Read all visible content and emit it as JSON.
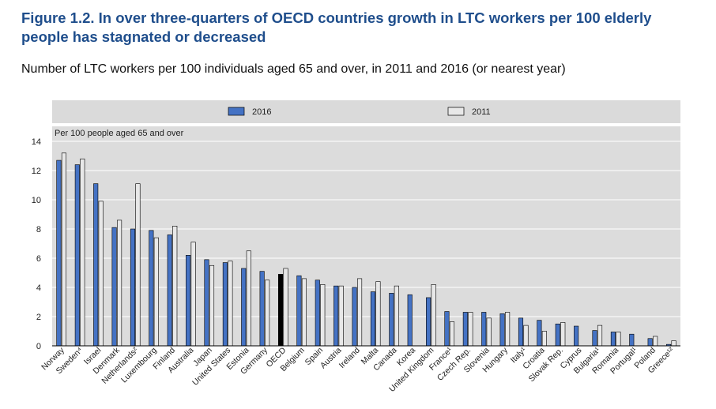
{
  "figure": {
    "title": "Figure 1.2. In over three-quarters of OECD countries growth in LTC workers per 100 elderly people has stagnated or decreased",
    "subtitle": "Number of LTC workers per 100 individuals aged 65 and over, in 2011 and 2016 (or nearest year)"
  },
  "chart_data": {
    "type": "bar",
    "ylabel": "Per 100 people aged 65 and over",
    "ylim": [
      0,
      14
    ],
    "yticks": [
      0,
      2,
      4,
      6,
      8,
      10,
      12,
      14
    ],
    "grid": true,
    "legend_position": "top",
    "categories": [
      "Norway",
      "Sweden⁴",
      "Israel",
      "Denmark",
      "Netherlands²",
      "Luxembourg",
      "Finland",
      "Australia",
      "Japan",
      "United States",
      "Estonia",
      "Germany",
      "OECD",
      "Belgium",
      "Spain",
      "Austria",
      "Ireland",
      "Malta",
      "Canada",
      "Korea",
      "United Kingdom",
      "France¹",
      "Czech Rep.",
      "Slovenia",
      "Hungary",
      "Italy¹",
      "Croatia",
      "Slovak Rep.",
      "Cyprus",
      "Bulgaria¹",
      "Romania",
      "Portugal¹",
      "Poland",
      "Greece¹²"
    ],
    "series": [
      {
        "name": "2016",
        "color": "#4472c4",
        "values": [
          12.7,
          12.4,
          11.1,
          8.1,
          8.0,
          7.9,
          7.6,
          6.2,
          5.9,
          5.7,
          5.3,
          5.1,
          4.9,
          4.8,
          4.5,
          4.1,
          4.0,
          3.7,
          3.6,
          3.5,
          3.3,
          2.35,
          2.3,
          2.3,
          2.2,
          1.9,
          1.75,
          1.5,
          1.35,
          1.05,
          0.95,
          0.8,
          0.5,
          0.1
        ]
      },
      {
        "name": "2011",
        "color": "#e8e8e8",
        "values": [
          13.2,
          12.8,
          9.9,
          8.6,
          11.1,
          7.4,
          8.2,
          7.1,
          5.5,
          5.8,
          6.5,
          4.5,
          5.3,
          4.6,
          4.2,
          4.1,
          4.6,
          4.4,
          4.1,
          null,
          4.2,
          1.65,
          2.3,
          1.9,
          2.3,
          1.4,
          1.0,
          1.6,
          null,
          1.4,
          0.95,
          null,
          0.65,
          0.35
        ]
      }
    ],
    "highlight": {
      "category": "OECD",
      "color": "#000000"
    }
  }
}
